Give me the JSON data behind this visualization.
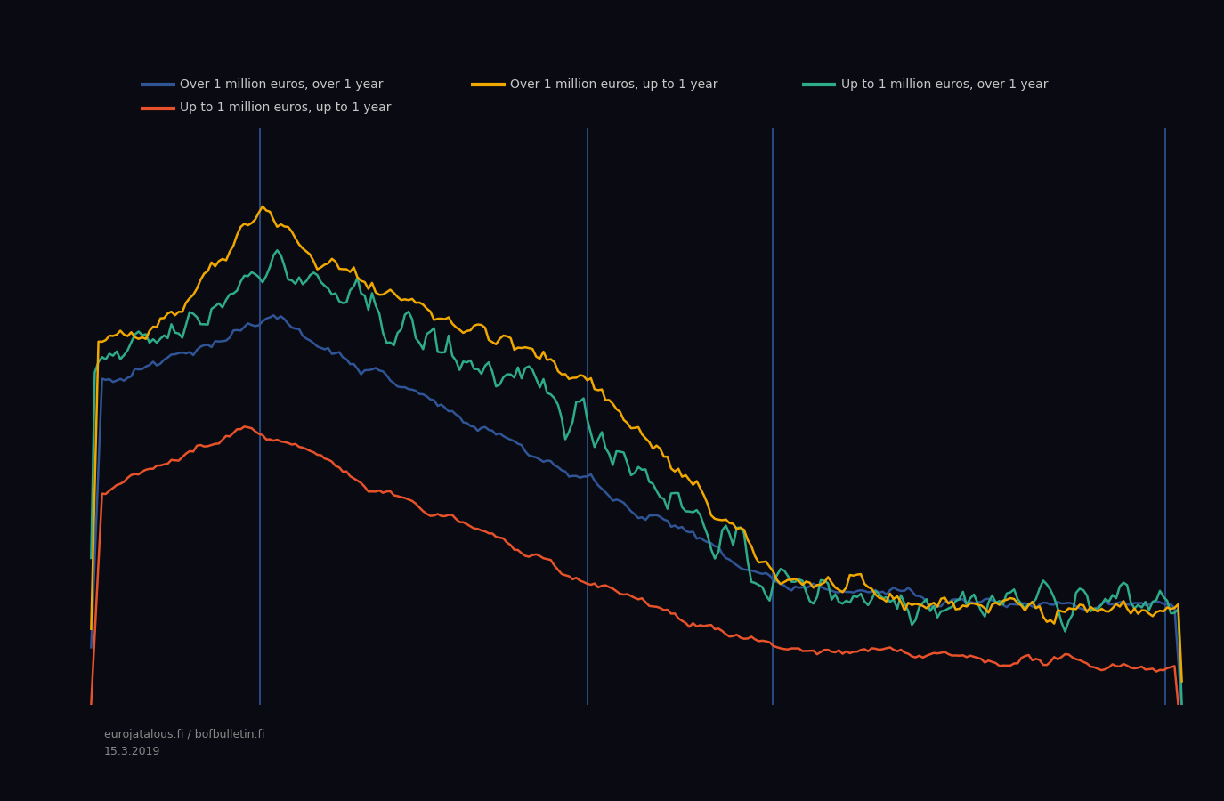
{
  "background_color": "#0a0a12",
  "plot_bg_color": "#0a0a12",
  "line_colors": {
    "blue": "#2f5597",
    "orange": "#f0a800",
    "teal": "#2eac8a",
    "red": "#e8522a"
  },
  "legend_labels": {
    "blue": "Over 1 million euros, over 1 year",
    "orange": "Over 1 million euros, up to 1 year",
    "teal": "Up to 1 million euros, over 1 year",
    "red": "Up to 1 million euros, up to 1 year"
  },
  "vline_color": "#2f5597",
  "vline_positions": [
    0.155,
    0.455,
    0.625,
    0.985
  ],
  "watermark_line1": "eurojatalous.fi / bofbulletin.fi",
  "watermark_line2": "15.3.2019",
  "n_points": 300,
  "seed": 42
}
